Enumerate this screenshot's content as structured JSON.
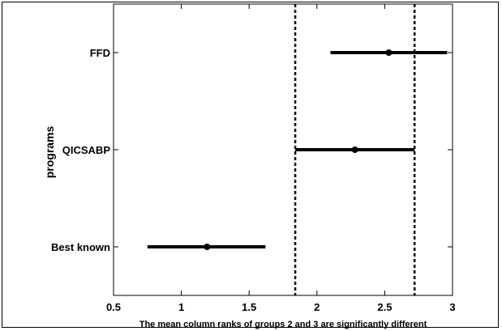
{
  "chart_data": {
    "type": "interval",
    "ylabel": "programs",
    "xlabel": "The mean column ranks of groups 2 and 3 are significantly different",
    "xlim": [
      0.5,
      3
    ],
    "xticks": [
      "0.5",
      "1",
      "1.5",
      "2",
      "2.5",
      "3"
    ],
    "grid": false,
    "categories": [
      "FFD",
      "QICSABP",
      "Best known"
    ],
    "series": [
      {
        "category": "FFD",
        "mean": 2.53,
        "lower": 2.1,
        "upper": 2.96
      },
      {
        "category": "QICSABP",
        "mean": 2.28,
        "lower": 1.84,
        "upper": 2.72
      },
      {
        "category": "Best known",
        "mean": 1.19,
        "lower": 0.75,
        "upper": 1.62
      }
    ],
    "reference_lines": [
      1.84,
      2.72
    ],
    "colors": {
      "interval": "#000000",
      "reference_line": "#000000"
    }
  }
}
